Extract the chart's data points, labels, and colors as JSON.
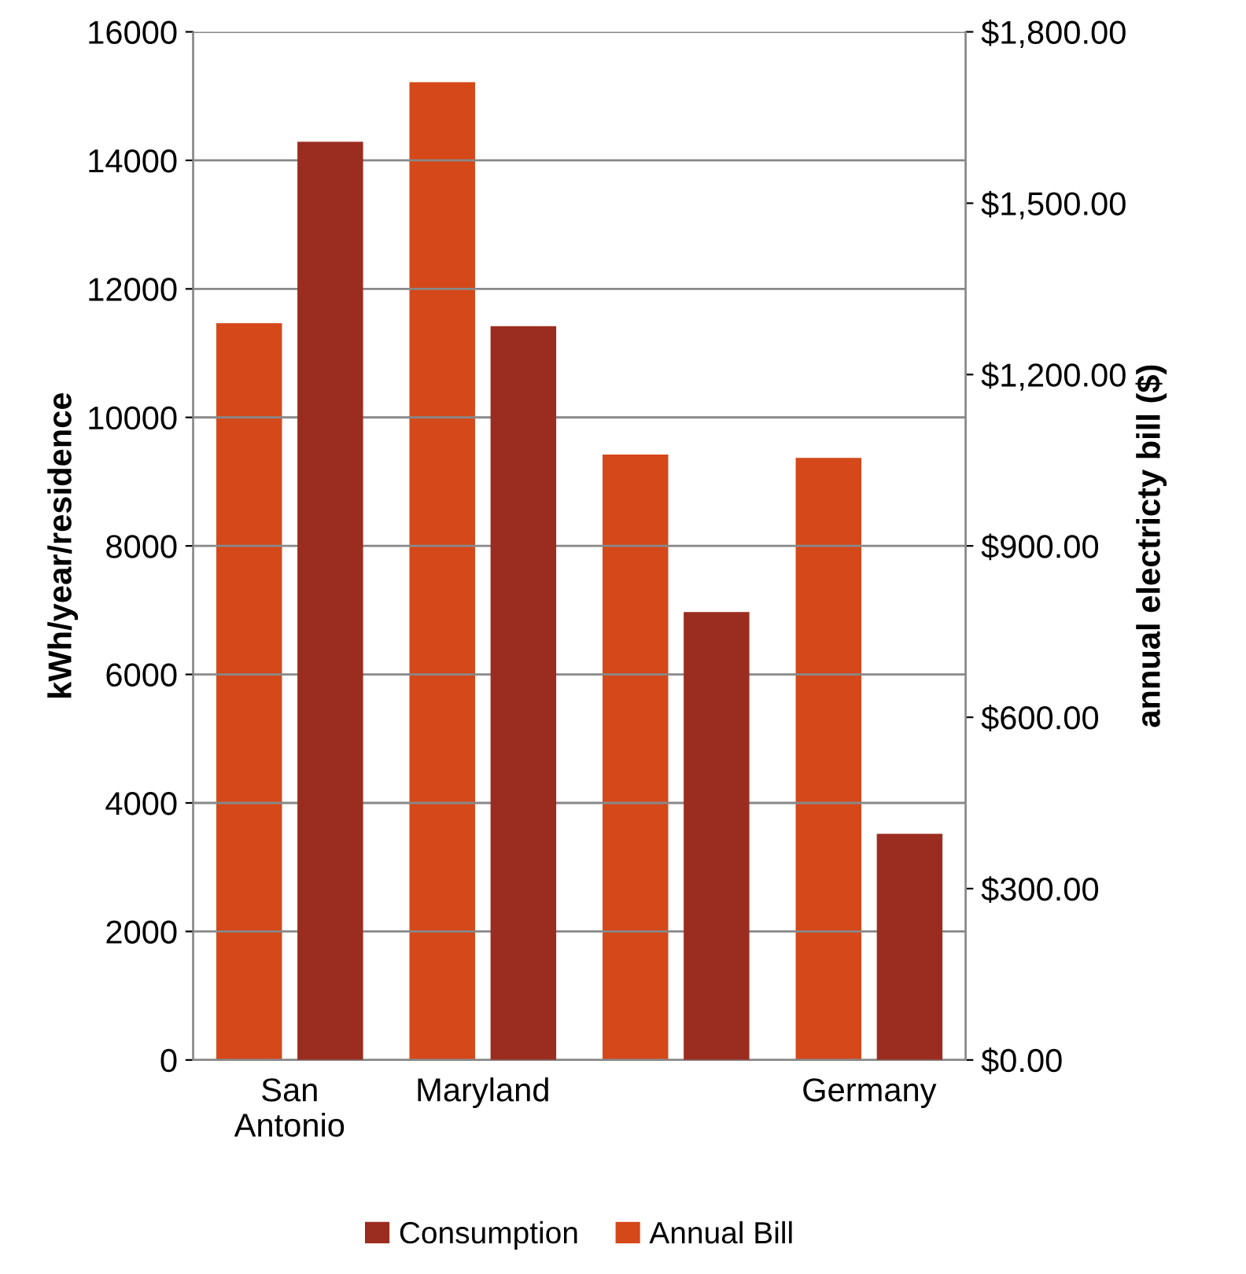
{
  "chart_data": {
    "type": "bar",
    "categories": [
      "San\nAntonio",
      "Maryland",
      null,
      "Germany"
    ],
    "series": [
      {
        "name": "Annual Bill",
        "color": "#d4481a",
        "axis": "y2",
        "values": [
          1290,
          1712,
          1060,
          1054
        ]
      },
      {
        "name": "Consumption",
        "color": "#9b2d20",
        "values": [
          14290,
          11420,
          6970,
          3520
        ]
      }
    ],
    "ylabel": "kWh/year/residence",
    "y2label": "annual electricty bill ($)",
    "ylim": [
      0,
      16000
    ],
    "yticks": [
      0,
      2000,
      4000,
      6000,
      8000,
      10000,
      12000,
      14000,
      16000
    ],
    "y2lim": [
      0,
      1800
    ],
    "y2ticks": [
      {
        "value": 0,
        "label": "$0.00"
      },
      {
        "value": 300,
        "label": "$300.00"
      },
      {
        "value": 600,
        "label": "$600.00"
      },
      {
        "value": 900,
        "label": "$900.00"
      },
      {
        "value": 1200,
        "label": "$1,200.00"
      },
      {
        "value": 1500,
        "label": "$1,500.00"
      },
      {
        "value": 1800,
        "label": "$1,800.00"
      }
    ],
    "grid": "y",
    "legend": "bottom"
  }
}
